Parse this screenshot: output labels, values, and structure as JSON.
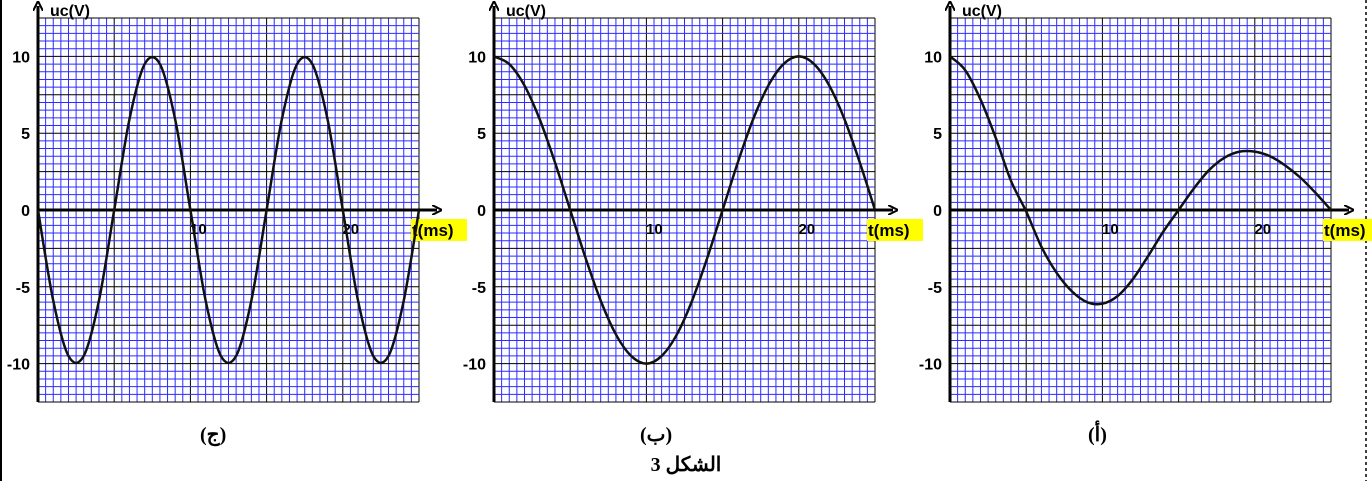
{
  "figure_title": "الشكل 3",
  "chart_data": [
    {
      "type": "line",
      "caption": "(ج)",
      "ylabel": "uc(V)",
      "xlabel": "t(ms)",
      "xlim": [
        0,
        25
      ],
      "ylim": [
        -12.5,
        12.5
      ],
      "x_ticks": [
        10,
        20
      ],
      "y_ticks": [
        10,
        5,
        0,
        -5,
        -10
      ],
      "grid": true,
      "series": [
        {
          "x": [
            0,
            1,
            2,
            3,
            4,
            5,
            6,
            7,
            8,
            9,
            10,
            11,
            12,
            13,
            14,
            15,
            16,
            17,
            18,
            19,
            20,
            21,
            22,
            23,
            24,
            25
          ],
          "values": [
            0,
            -5.9,
            -9.5,
            -9.5,
            -5.9,
            0,
            5.9,
            9.5,
            9.5,
            5.9,
            0,
            -5.9,
            -9.5,
            -9.5,
            -5.9,
            0,
            5.9,
            9.5,
            9.5,
            5.9,
            0,
            -5.9,
            -9.5,
            -9.5,
            -5.9,
            0
          ]
        }
      ]
    },
    {
      "type": "line",
      "caption": "(ب)",
      "ylabel": "uc(V)",
      "xlabel": "t(ms)",
      "xlim": [
        0,
        25
      ],
      "ylim": [
        -12.5,
        12.5
      ],
      "x_ticks": [
        10,
        20
      ],
      "y_ticks": [
        10,
        5,
        0,
        -5,
        -10
      ],
      "grid": true,
      "series": [
        {
          "x": [
            0,
            1,
            2,
            3,
            4,
            5,
            6,
            7,
            8,
            9,
            10,
            11,
            12,
            13,
            14,
            15,
            16,
            17,
            18,
            19,
            20,
            21,
            22,
            23,
            24,
            25
          ],
          "values": [
            10,
            9.5,
            8.1,
            5.9,
            3.1,
            0,
            -3.1,
            -5.9,
            -8.1,
            -9.5,
            -10,
            -9.5,
            -8.1,
            -5.9,
            -3.1,
            0,
            3.1,
            5.9,
            8.1,
            9.5,
            10,
            9.5,
            8.1,
            5.9,
            3.1,
            0
          ]
        }
      ]
    },
    {
      "type": "line",
      "caption": "(أ)",
      "ylabel": "uc(V)",
      "xlabel": "t(ms)",
      "xlim": [
        0,
        25
      ],
      "ylim": [
        -12.5,
        12.5
      ],
      "x_ticks": [
        10,
        20
      ],
      "y_ticks": [
        10,
        5,
        0,
        -5,
        -10
      ],
      "grid": true,
      "series": [
        {
          "x": [
            0,
            1,
            2,
            3,
            4,
            5,
            6,
            7,
            8,
            9,
            10,
            11,
            12,
            13,
            14,
            15,
            16,
            17,
            18,
            19,
            20,
            21,
            22,
            23,
            24,
            25
          ],
          "values": [
            10,
            9.1,
            7.2,
            4.7,
            1.9,
            -0.1,
            -2.4,
            -4.1,
            -5.3,
            -6.0,
            -6.1,
            -5.6,
            -4.5,
            -3.0,
            -1.4,
            0,
            1.4,
            2.6,
            3.4,
            3.8,
            3.8,
            3.5,
            2.9,
            2.1,
            1.1,
            0
          ]
        }
      ]
    }
  ]
}
